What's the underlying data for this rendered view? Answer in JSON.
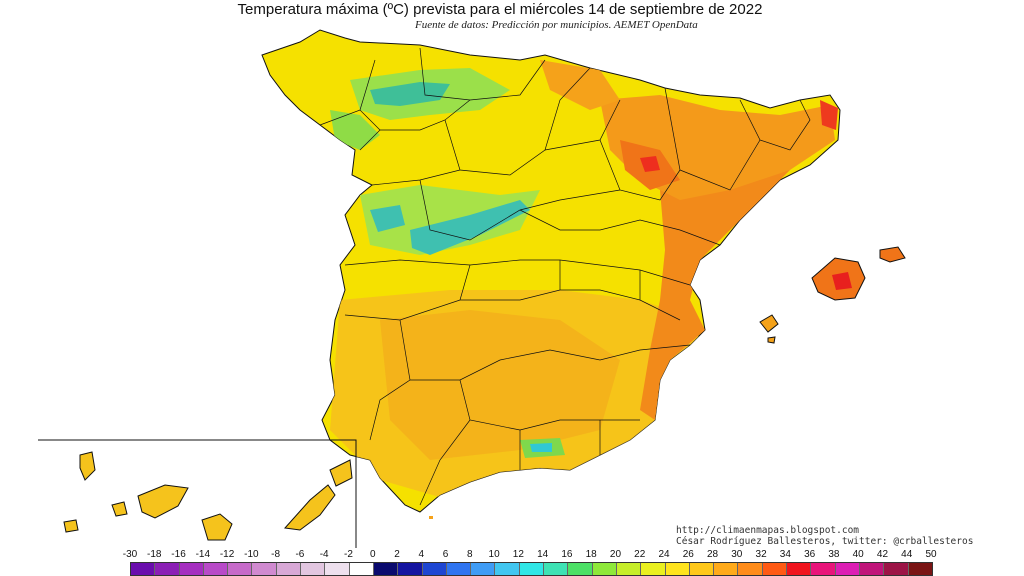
{
  "title": "Temperatura máxima (ºC) prevista para el miércoles 14 de septiembre de 2022",
  "subtitle": "Fuente de datos: Predicción por municipios. AEMET OpenData",
  "credits": {
    "line1": "http://climaenmapas.blogspot.com",
    "line2": "César Rodríguez Ballesteros, twitter: @crballesteros"
  },
  "legend": {
    "labels": [
      "-30",
      "-18",
      "-16",
      "-14",
      "-12",
      "-10",
      "-8",
      "-6",
      "-4",
      "-2",
      "0",
      "2",
      "4",
      "6",
      "8",
      "10",
      "12",
      "14",
      "16",
      "18",
      "20",
      "22",
      "24",
      "26",
      "28",
      "30",
      "32",
      "34",
      "36",
      "38",
      "40",
      "42",
      "44",
      "50"
    ],
    "colors": [
      "#6a0dad",
      "#8b1fb5",
      "#a52ec0",
      "#b84ac8",
      "#c66ac9",
      "#d08ad0",
      "#d8a8d6",
      "#e2c6e0",
      "#eee0ee",
      "#ffffff",
      "#0a0a6e",
      "#1414a0",
      "#1e46d2",
      "#2f74f0",
      "#3f9cf5",
      "#41c6f0",
      "#30e6e6",
      "#3ee2b4",
      "#4ce066",
      "#8ee83a",
      "#c6ee2a",
      "#eaf020",
      "#ffe41e",
      "#ffc81a",
      "#ffaa1a",
      "#ff8c1a",
      "#ff5a14",
      "#f0141e",
      "#e8147a",
      "#dc1eb4",
      "#c0147a",
      "#9c1446",
      "#7a1414"
    ]
  },
  "map_colors": {
    "base_yellow": "#f5e600",
    "orange": "#f6b21a",
    "deep_orange": "#f07a14",
    "red": "#e8201e",
    "green": "#b8e84a",
    "teal": "#3ebfa0",
    "cyan": "#38c8d6"
  }
}
